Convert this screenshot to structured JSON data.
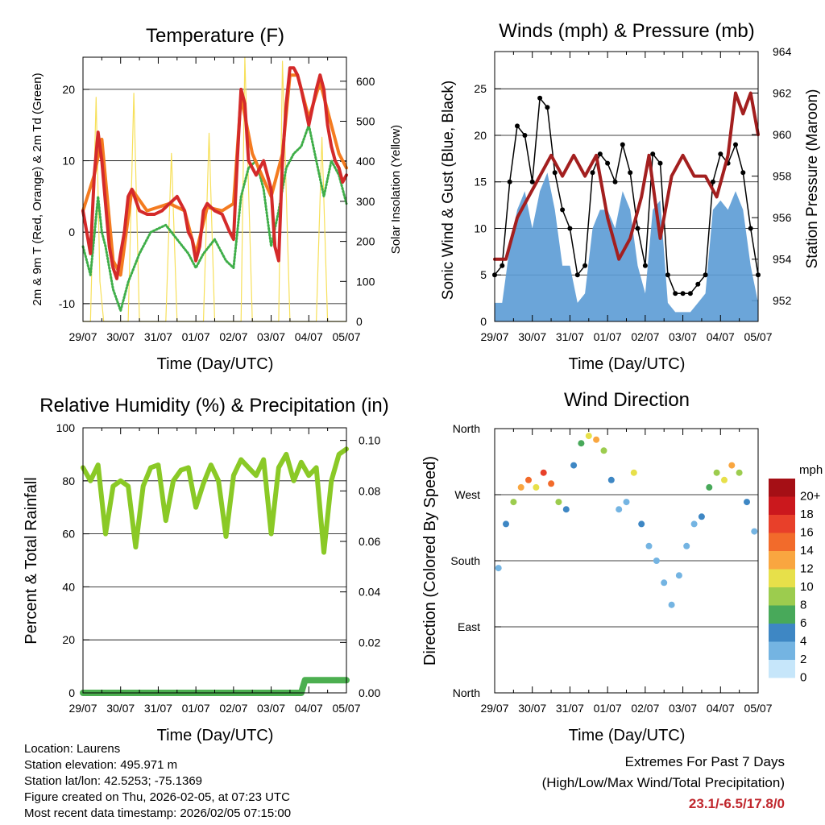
{
  "colors": {
    "red": "#d42a2a",
    "orange": "#f47b20",
    "green": "#3fae49",
    "yellow": "#f7e05a",
    "blue": "#5b9bd5",
    "black": "#000000",
    "maroon": "#a31f1f",
    "lightgreen": "#8ac926",
    "precip": "#4caf50"
  },
  "charts": {
    "temperature": {
      "title": "Temperature (F)",
      "xlabel": "Time (Day/UTC)",
      "ylabel": "2m & 9m T (Red, Orange) & 2m Td (Green)",
      "y2label": "Solar Insolation (Yellow)",
      "xticks": [
        "29/07",
        "30/07",
        "31/07",
        "01/07",
        "02/07",
        "03/07",
        "04/07",
        "05/07"
      ],
      "yticks": [
        "-10",
        "0",
        "10",
        "20"
      ],
      "y2ticks": [
        "0",
        "100",
        "200",
        "300",
        "400",
        "500",
        "600"
      ]
    },
    "winds": {
      "title": "Winds (mph) & Pressure (mb)",
      "xlabel": "Time (Day/UTC)",
      "ylabel": "Sonic Wind & Gust (Blue, Black)",
      "y2label": "Station Pressure (Maroon)",
      "xticks": [
        "29/07",
        "30/07",
        "31/07",
        "01/07",
        "02/07",
        "03/07",
        "04/07",
        "05/07"
      ],
      "yticks": [
        "0",
        "5",
        "10",
        "15",
        "20",
        "25"
      ],
      "y2ticks": [
        "952",
        "954",
        "956",
        "958",
        "960",
        "962",
        "964"
      ]
    },
    "humidity": {
      "title": "Relative Humidity (%) & Precipitation (in)",
      "xlabel": "Time (Day/UTC)",
      "ylabel": "Percent & Total Rainfall",
      "xticks": [
        "29/07",
        "30/07",
        "31/07",
        "01/07",
        "02/07",
        "03/07",
        "04/07",
        "05/07"
      ],
      "yticks": [
        "0",
        "20",
        "40",
        "60",
        "80",
        "100"
      ],
      "y2ticks": [
        "0.00",
        "0.02",
        "0.04",
        "0.06",
        "0.08",
        "0.10"
      ]
    },
    "direction": {
      "title": "Wind Direction",
      "xlabel": "Time (Day/UTC)",
      "ylabel": "Direction (Colored By Speed)",
      "xticks": [
        "29/07",
        "30/07",
        "31/07",
        "01/07",
        "02/07",
        "03/07",
        "04/07",
        "05/07"
      ],
      "yticks": [
        "North",
        "East",
        "South",
        "West",
        "North"
      ],
      "legend_title": "mph",
      "legend_labels": [
        "20+",
        "18",
        "16",
        "14",
        "12",
        "10",
        "8",
        "6",
        "4",
        "2",
        "0"
      ],
      "legend_colors": [
        "#a50f15",
        "#cb181d",
        "#e8402a",
        "#f26b2b",
        "#f9a640",
        "#e7e04a",
        "#9ccc4e",
        "#48a95a",
        "#3e87c4",
        "#74b4e2",
        "#c6e6fa"
      ]
    }
  },
  "chart_data": [
    {
      "type": "line",
      "title": "Temperature (F)",
      "xlabel": "Time (Day/UTC)",
      "ylabel": "2m & 9m T (Red, Orange) & 2m Td (Green)",
      "xlim": [
        0,
        7
      ],
      "ylim": [
        -12.5,
        24.5
      ],
      "y2lim": [
        0,
        660
      ],
      "series": [
        {
          "name": "2m T",
          "color": "#d42a2a",
          "x": [
            0,
            0.1,
            0.2,
            0.3,
            0.4,
            0.5,
            0.6,
            0.7,
            0.8,
            0.9,
            1,
            1.1,
            1.2,
            1.3,
            1.5,
            1.7,
            1.9,
            2.1,
            2.3,
            2.5,
            2.7,
            2.8,
            2.9,
            3,
            3.1,
            3.2,
            3.3,
            3.5,
            3.7,
            3.9,
            4,
            4.1,
            4.2,
            4.3,
            4.4,
            4.6,
            4.8,
            5,
            5.1,
            5.2,
            5.3,
            5.4,
            5.5,
            5.6,
            5.7,
            5.8,
            6,
            6.2,
            6.3,
            6.4,
            6.5,
            6.6,
            6.7,
            6.8,
            6.9,
            7
          ],
          "y": [
            3,
            0,
            -3,
            8,
            14,
            10,
            4,
            -2,
            -5,
            -6.5,
            -3,
            0,
            5,
            6,
            3,
            2.5,
            2.5,
            3,
            4,
            5,
            3,
            0,
            -1,
            -4,
            -2,
            3,
            4,
            3,
            2.5,
            0,
            -1,
            10,
            20,
            18,
            10,
            8,
            10,
            6,
            -2,
            -4,
            10,
            18,
            23,
            23,
            22,
            20,
            15,
            20,
            22,
            20,
            15,
            12,
            10,
            9,
            7,
            8
          ]
        },
        {
          "name": "9m T",
          "color": "#f47b20",
          "x": [
            0,
            0.3,
            0.5,
            0.8,
            1,
            1.3,
            1.7,
            2.3,
            2.7,
            3,
            3.3,
            3.7,
            4,
            4.2,
            4.5,
            5,
            5.3,
            5.5,
            5.7,
            6,
            6.3,
            6.5,
            6.8,
            7
          ],
          "y": [
            3,
            8,
            13,
            -4,
            -6,
            6,
            3,
            4,
            3,
            -3,
            3.5,
            3,
            4,
            19,
            11,
            5,
            11,
            22,
            22,
            16,
            21,
            17,
            11,
            9
          ]
        },
        {
          "name": "2m Td",
          "color": "#3fae49",
          "x": [
            0,
            0.1,
            0.2,
            0.4,
            0.5,
            0.6,
            0.8,
            1,
            1.2,
            1.5,
            1.8,
            2.2,
            2.5,
            2.8,
            3,
            3.2,
            3.5,
            3.8,
            4,
            4.2,
            4.4,
            4.6,
            4.8,
            5,
            5.2,
            5.4,
            5.6,
            5.8,
            6,
            6.2,
            6.4,
            6.6,
            6.8,
            7
          ],
          "y": [
            -2,
            -4,
            -6,
            5,
            0,
            -2,
            -8,
            -11,
            -7,
            -3,
            0,
            1,
            -1,
            -3,
            -5,
            -3,
            -1,
            -4,
            -5,
            5,
            9,
            10,
            6,
            -2,
            3,
            9,
            11,
            12,
            15,
            10,
            5,
            10,
            8,
            4
          ]
        },
        {
          "name": "Solar Insolation",
          "axis": "y2",
          "color": "#f7e05a",
          "x": [
            0,
            0.2,
            0.35,
            0.45,
            0.55,
            1,
            1.2,
            1.35,
            1.5,
            2,
            2.2,
            2.35,
            2.5,
            3,
            3.2,
            3.35,
            3.5,
            4,
            4.2,
            4.3,
            4.5,
            5,
            5.2,
            5.3,
            5.5,
            6,
            6.2,
            6.35,
            6.5,
            7
          ],
          "y": [
            0,
            0,
            560,
            100,
            0,
            0,
            0,
            570,
            0,
            0,
            0,
            420,
            0,
            0,
            0,
            470,
            0,
            0,
            0,
            660,
            0,
            0,
            0,
            650,
            0,
            0,
            0,
            460,
            0,
            0
          ]
        }
      ]
    },
    {
      "type": "line",
      "title": "Winds (mph) & Pressure (mb)",
      "xlabel": "Time (Day/UTC)",
      "ylabel": "Sonic Wind & Gust (Blue, Black)",
      "xlim": [
        0,
        7
      ],
      "ylim": [
        0,
        29
      ],
      "y2lim": [
        951,
        964
      ],
      "series": [
        {
          "name": "Sonic Wind",
          "color": "#5b9bd5",
          "x": [
            0,
            0.2,
            0.4,
            0.6,
            0.8,
            1,
            1.2,
            1.4,
            1.6,
            1.8,
            2,
            2.2,
            2.4,
            2.6,
            2.8,
            3,
            3.2,
            3.4,
            3.6,
            3.8,
            4,
            4.2,
            4.4,
            4.6,
            4.8,
            5,
            5.2,
            5.4,
            5.6,
            5.8,
            6,
            6.2,
            6.4,
            6.6,
            6.8,
            7
          ],
          "y": [
            2,
            2,
            8,
            12,
            14,
            10,
            14,
            16,
            12,
            6,
            6,
            2,
            3,
            10,
            12,
            12,
            10,
            14,
            12,
            6,
            3,
            12,
            13,
            2,
            1,
            1,
            1,
            2,
            3,
            12,
            13,
            12,
            14,
            12,
            6,
            2
          ]
        },
        {
          "name": "Gust",
          "color": "#000000",
          "x": [
            0,
            0.2,
            0.4,
            0.6,
            0.8,
            1,
            1.2,
            1.4,
            1.6,
            1.8,
            2,
            2.2,
            2.4,
            2.6,
            2.8,
            3,
            3.2,
            3.4,
            3.6,
            3.8,
            4,
            4.2,
            4.4,
            4.6,
            4.8,
            5,
            5.2,
            5.4,
            5.6,
            5.8,
            6,
            6.2,
            6.4,
            6.6,
            6.8,
            7
          ],
          "y": [
            5,
            6,
            15,
            21,
            20,
            15,
            24,
            23,
            16,
            12,
            10,
            5,
            6,
            16,
            18,
            17,
            15,
            19,
            16,
            10,
            6,
            18,
            17,
            5,
            3,
            3,
            3,
            4,
            5,
            15,
            18,
            17,
            19,
            16,
            10,
            5
          ]
        },
        {
          "name": "Station Pressure",
          "axis": "y2",
          "color": "#a31f1f",
          "x": [
            0,
            0.3,
            0.6,
            0.9,
            1.2,
            1.5,
            1.8,
            2.1,
            2.4,
            2.7,
            3,
            3.3,
            3.6,
            3.9,
            4.1,
            4.4,
            4.7,
            5,
            5.3,
            5.6,
            5.9,
            6.2,
            6.4,
            6.6,
            6.8,
            7
          ],
          "y": [
            954,
            954,
            956,
            957,
            958,
            959,
            958,
            959,
            958,
            959,
            956,
            954,
            955,
            957,
            959,
            955,
            958,
            959,
            958,
            958,
            957,
            959,
            962,
            961,
            962,
            960
          ]
        }
      ]
    },
    {
      "type": "line",
      "title": "Relative Humidity (%) & Precipitation (in)",
      "xlabel": "Time (Day/UTC)",
      "ylabel": "Percent & Total Rainfall",
      "xlim": [
        0,
        7
      ],
      "ylim": [
        0,
        100
      ],
      "y2lim": [
        0,
        0.105
      ],
      "series": [
        {
          "name": "Relative Humidity",
          "color": "#8ac926",
          "x": [
            0,
            0.2,
            0.4,
            0.6,
            0.8,
            1,
            1.2,
            1.4,
            1.6,
            1.8,
            2,
            2.2,
            2.4,
            2.6,
            2.8,
            3,
            3.2,
            3.4,
            3.6,
            3.8,
            4,
            4.2,
            4.4,
            4.6,
            4.8,
            5,
            5.2,
            5.4,
            5.6,
            5.8,
            6,
            6.2,
            6.4,
            6.6,
            6.8,
            7
          ],
          "y": [
            85,
            80,
            86,
            60,
            78,
            80,
            78,
            55,
            78,
            85,
            86,
            65,
            80,
            84,
            85,
            70,
            79,
            86,
            80,
            59,
            82,
            88,
            85,
            82,
            88,
            60,
            85,
            90,
            80,
            87,
            82,
            85,
            53,
            80,
            90,
            92
          ]
        },
        {
          "name": "Total Precipitation",
          "axis": "y2",
          "color": "#4caf50",
          "x": [
            0,
            5.8,
            5.9,
            7
          ],
          "y": [
            0,
            0,
            0.005,
            0.005
          ]
        }
      ]
    },
    {
      "type": "scatter",
      "title": "Wind Direction",
      "xlabel": "Time (Day/UTC)",
      "ylabel": "Direction (Colored By Speed)",
      "xlim": [
        0,
        7
      ],
      "ylim": [
        0,
        360
      ],
      "colorbar": {
        "title": "mph",
        "labels": [
          "20+",
          "18",
          "16",
          "14",
          "12",
          "10",
          "8",
          "6",
          "4",
          "2",
          "0"
        ]
      },
      "x": [
        0.1,
        0.3,
        0.5,
        0.7,
        0.9,
        1.1,
        1.3,
        1.5,
        1.7,
        1.9,
        2.1,
        2.3,
        2.5,
        2.7,
        2.9,
        3.1,
        3.3,
        3.5,
        3.7,
        3.9,
        4.1,
        4.3,
        4.5,
        4.7,
        4.9,
        5.1,
        5.3,
        5.5,
        5.7,
        5.9,
        6.1,
        6.3,
        6.5,
        6.7,
        6.9
      ],
      "y": [
        170,
        230,
        260,
        280,
        290,
        280,
        300,
        285,
        260,
        250,
        310,
        340,
        350,
        345,
        330,
        290,
        250,
        260,
        300,
        230,
        200,
        180,
        150,
        120,
        160,
        200,
        230,
        240,
        280,
        300,
        290,
        310,
        300,
        260,
        220
      ],
      "speed": [
        2,
        3,
        8,
        12,
        14,
        10,
        16,
        14,
        8,
        4,
        4,
        6,
        10,
        12,
        8,
        4,
        2,
        2,
        10,
        4,
        2,
        1,
        1,
        2,
        2,
        2,
        1,
        3,
        6,
        8,
        10,
        12,
        8,
        4,
        2
      ]
    }
  ],
  "footer": {
    "location": "Location: Laurens",
    "elevation": "Station elevation: 495.971 m",
    "latlon": "Station lat/lon: 42.5253; -75.1369",
    "created": "Figure created on Thu, 2026-02-05, at 07:23 UTC",
    "timestamp": "Most recent data timestamp: 2026/02/05 07:15:00",
    "extremes_title": "Extremes For Past 7 Days",
    "extremes_subtitle": "(High/Low/Max Wind/Total Precipitation)",
    "extremes_values": "23.1/-6.5/17.8/0"
  }
}
